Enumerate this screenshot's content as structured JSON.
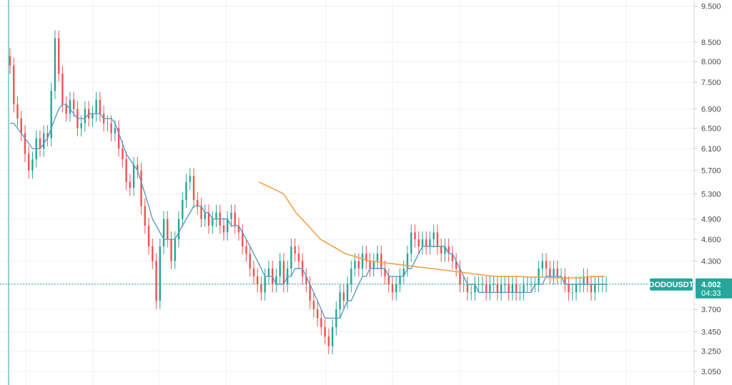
{
  "chart_data": {
    "type": "candlestick",
    "symbol": "DODOUSDT",
    "last_price": "4.002",
    "countdown": "04:33",
    "scale": "log",
    "ylim": [
      2.95,
      9.6
    ],
    "y_ticks": [
      "9.500",
      "8.500",
      "8.000",
      "7.500",
      "6.900",
      "6.500",
      "6.100",
      "5.700",
      "5.300",
      "4.900",
      "4.600",
      "4.300",
      "4.000",
      "3.700",
      "3.450",
      "3.250",
      "3.050"
    ],
    "colors": {
      "up": "#26a69a",
      "down": "#ef5350",
      "ma_short": "#5b9bc8",
      "ma_long": "#f5a04a",
      "last_price_line": "#26a69a",
      "grid": "#eef0f3",
      "axis_left_border": "#26a69a"
    },
    "series": [
      {
        "name": "Close",
        "values": [
          7.9,
          7.0,
          6.7,
          6.4,
          6.0,
          5.7,
          5.9,
          6.3,
          6.1,
          6.4,
          6.3,
          7.3,
          8.6,
          7.7,
          7.0,
          6.8,
          7.1,
          6.9,
          6.5,
          6.6,
          6.9,
          6.7,
          6.8,
          7.1,
          6.8,
          6.6,
          6.6,
          6.4,
          6.5,
          6.1,
          5.9,
          5.5,
          5.4,
          5.8,
          5.7,
          5.1,
          4.8,
          4.5,
          4.3,
          3.8,
          4.5,
          4.9,
          4.6,
          4.3,
          4.6,
          4.9,
          5.2,
          5.5,
          5.6,
          5.2,
          5.1,
          4.9,
          5.0,
          4.8,
          4.9,
          5.0,
          4.8,
          4.7,
          4.9,
          5.0,
          4.8,
          4.7,
          4.5,
          4.4,
          4.2,
          4.1,
          4.0,
          3.9,
          4.1,
          4.2,
          4.0,
          4.1,
          4.3,
          4.0,
          4.2,
          4.5,
          4.4,
          4.3,
          4.1,
          4.0,
          3.8,
          3.7,
          3.6,
          3.5,
          3.4,
          3.3,
          3.5,
          3.7,
          3.9,
          3.8,
          4.0,
          4.2,
          4.3,
          4.2,
          4.4,
          4.3,
          4.2,
          4.3,
          4.4,
          4.2,
          4.1,
          4.0,
          3.9,
          4.0,
          4.1,
          4.2,
          4.4,
          4.7,
          4.6,
          4.5,
          4.6,
          4.5,
          4.6,
          4.7,
          4.5,
          4.4,
          4.5,
          4.4,
          4.3,
          4.2,
          4.0,
          4.0,
          3.9,
          3.9,
          4.0,
          4.0,
          4.0,
          3.9,
          4.0,
          4.0,
          3.9,
          4.0,
          4.0,
          3.9,
          4.0,
          3.9,
          3.9,
          4.0,
          4.0,
          4.0,
          4.0,
          4.2,
          4.3,
          4.2,
          4.1,
          4.2,
          4.1,
          4.1,
          4.0,
          3.9,
          3.9,
          4.0,
          4.0,
          4.1,
          4.0,
          3.9,
          4.0,
          4.0,
          4.0,
          4.0
        ]
      },
      {
        "name": "MA short",
        "values": [
          6.6,
          6.6,
          6.5,
          6.4,
          6.3,
          6.2,
          6.1,
          6.1,
          6.1,
          6.2,
          6.3,
          6.5,
          6.7,
          6.9,
          7.0,
          7.0,
          6.9,
          6.8,
          6.7,
          6.7,
          6.7,
          6.8,
          6.8,
          6.8,
          6.8,
          6.7,
          6.7,
          6.7,
          6.6,
          6.4,
          6.2,
          6.0,
          5.9,
          5.8,
          5.7,
          5.5,
          5.3,
          5.1,
          4.9,
          4.8,
          4.7,
          4.6,
          4.6,
          4.6,
          4.6,
          4.7,
          4.8,
          4.9,
          5.0,
          5.1,
          5.1,
          5.1,
          5.0,
          5.0,
          4.9,
          4.9,
          4.9,
          4.9,
          4.9,
          4.8,
          4.8,
          4.8,
          4.7,
          4.6,
          4.5,
          4.4,
          4.3,
          4.2,
          4.1,
          4.1,
          4.1,
          4.0,
          4.0,
          4.0,
          4.1,
          4.1,
          4.2,
          4.2,
          4.2,
          4.1,
          4.0,
          3.9,
          3.8,
          3.7,
          3.6,
          3.6,
          3.6,
          3.6,
          3.6,
          3.7,
          3.8,
          3.8,
          3.9,
          4.0,
          4.1,
          4.1,
          4.2,
          4.2,
          4.2,
          4.2,
          4.2,
          4.1,
          4.1,
          4.1,
          4.1,
          4.1,
          4.2,
          4.2,
          4.3,
          4.4,
          4.5,
          4.5,
          4.5,
          4.5,
          4.5,
          4.5,
          4.5,
          4.4,
          4.4,
          4.3,
          4.2,
          4.1,
          4.0,
          4.0,
          4.0,
          3.9,
          3.9,
          3.9,
          3.9,
          3.9,
          3.9,
          3.9,
          3.9,
          3.9,
          3.9,
          3.9,
          3.9,
          3.9,
          3.9,
          3.9,
          4.0,
          4.0,
          4.0,
          4.1,
          4.1,
          4.1,
          4.1,
          4.1,
          4.0,
          4.0,
          4.0,
          4.0,
          4.0,
          4.0,
          4.0,
          4.0,
          4.0,
          4.0,
          4.0,
          4.0
        ]
      },
      {
        "name": "MA long",
        "values": [
          5.5,
          5.4,
          5.3,
          5.0,
          4.8,
          4.6,
          4.5,
          4.4,
          4.35,
          4.3,
          4.28,
          4.26,
          4.24,
          4.22,
          4.2,
          4.18,
          4.16,
          4.14,
          4.12,
          4.1,
          4.1,
          4.1,
          4.09,
          4.09,
          4.08,
          4.08,
          4.08,
          4.1,
          4.1
        ]
      }
    ]
  }
}
